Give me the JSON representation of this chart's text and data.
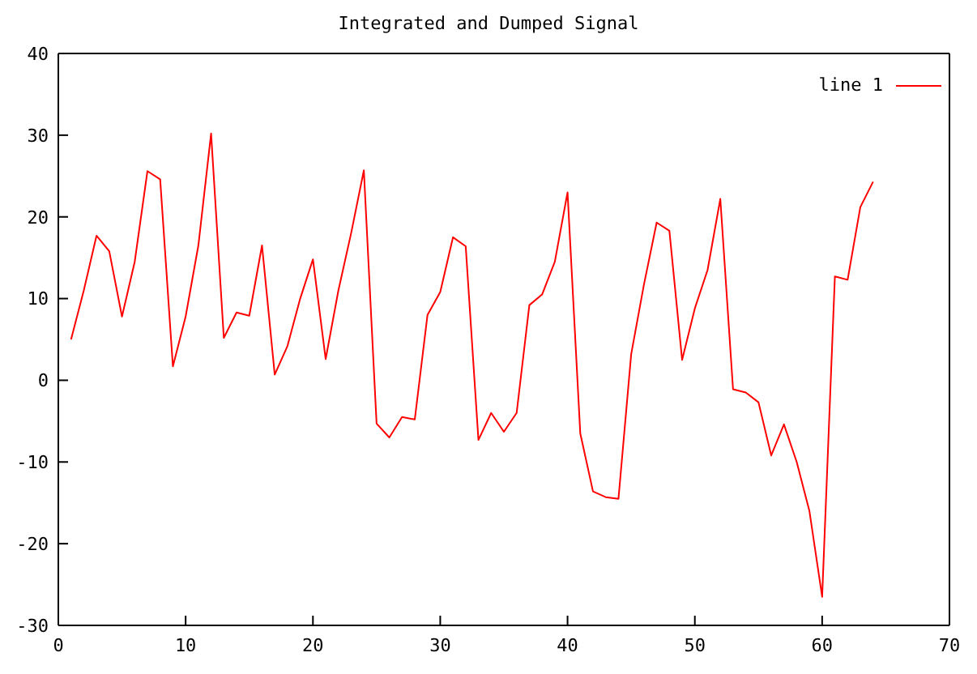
{
  "chart_data": {
    "type": "line",
    "title": "Integrated and Dumped Signal",
    "x": [
      1,
      2,
      3,
      4,
      5,
      6,
      7,
      8,
      9,
      10,
      11,
      12,
      13,
      14,
      15,
      16,
      17,
      18,
      19,
      20,
      21,
      22,
      23,
      24,
      25,
      26,
      27,
      28,
      29,
      30,
      31,
      32,
      33,
      34,
      35,
      36,
      37,
      38,
      39,
      40,
      41,
      42,
      43,
      44,
      45,
      46,
      47,
      48,
      49,
      50,
      51,
      52,
      53,
      54,
      55,
      56,
      57,
      58,
      59,
      60,
      61,
      62,
      63,
      64
    ],
    "series": [
      {
        "name": "line 1",
        "color": "#ff0000",
        "values": [
          5,
          11,
          17.7,
          15.8,
          7.8,
          14.5,
          25.6,
          24.6,
          1.7,
          7.8,
          16.5,
          30.2,
          5.2,
          8.3,
          7.9,
          16.5,
          0.7,
          4.2,
          10,
          14.8,
          2.6,
          11,
          18,
          25.7,
          -5.3,
          -7,
          -4.5,
          -4.8,
          8,
          10.8,
          17.5,
          16.4,
          -7.3,
          -4,
          -6.3,
          -4,
          9.2,
          10.5,
          14.5,
          23,
          -6.5,
          -13.6,
          -14.3,
          -14.5,
          3.2,
          11.7,
          19.3,
          18.3,
          2.5,
          8.8,
          13.5,
          22.2,
          -1.1,
          -1.5,
          -2.7,
          -9.2,
          -5.4,
          -10,
          -16,
          -26.5,
          12.7,
          12.3,
          21.2,
          24.3
        ]
      }
    ],
    "xlim": [
      0,
      70
    ],
    "xticks": [
      0,
      10,
      20,
      30,
      40,
      50,
      60,
      70
    ],
    "ylim": [
      -30,
      40
    ],
    "yticks": [
      -30,
      -20,
      -10,
      0,
      10,
      20,
      30,
      40
    ],
    "grid": false,
    "legend": "top right",
    "marker": "none",
    "line_style": "solid"
  }
}
